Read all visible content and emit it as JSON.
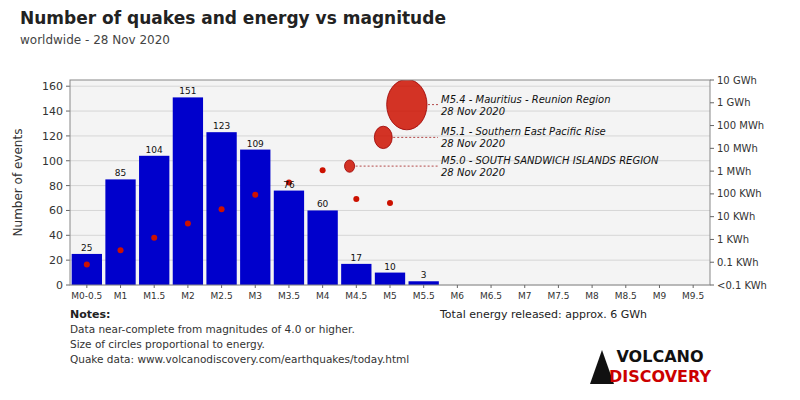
{
  "chart_data": {
    "type": "bar",
    "title": "Number of quakes and energy vs magnitude",
    "subtitle": "worldwide - 28 Nov 2020",
    "categories": [
      "M0-0.5",
      "M1",
      "M1.5",
      "M2",
      "M2.5",
      "M3",
      "M3.5",
      "M4",
      "M4.5",
      "M5",
      "M5.5",
      "M6",
      "M6.5",
      "M7",
      "M7.5",
      "M8",
      "M8.5",
      "M9",
      "M9.5"
    ],
    "ylabel": "Number of events",
    "ylim": [
      0,
      165
    ],
    "yticks": [
      0,
      20,
      40,
      60,
      80,
      100,
      120,
      140,
      160
    ],
    "y2lim": [
      0,
      1
    ],
    "y2ticks": [
      {
        "value": 1,
        "label": "10 GWh"
      },
      {
        "value": 0.8888888888888888,
        "label": "1 GWh"
      },
      {
        "value": 0.7777777777777778,
        "label": "100 MWh"
      },
      {
        "value": 0.6666666666666667,
        "label": "10 MWh"
      },
      {
        "value": 0.5555555555555556,
        "label": "1 MWh"
      },
      {
        "value": 0.4444444444444444,
        "label": "100 KWh"
      },
      {
        "value": 0.3333333333333333,
        "label": "10 KWh"
      },
      {
        "value": 0.2222222222222222,
        "label": "1 KWh"
      },
      {
        "value": 0.1111111111111111,
        "label": "0.1 KWh"
      },
      {
        "value": 0,
        "label": "<0.1 KWh"
      }
    ],
    "grid": true,
    "data_labels": true,
    "series": [
      {
        "type": "bar",
        "color": "#0000cc",
        "values": [
          25,
          85,
          104,
          151,
          123,
          109,
          76,
          60,
          17,
          10,
          3,
          0,
          0,
          0,
          0,
          0,
          0,
          0,
          0
        ],
        "value_labels": [
          "25",
          "85",
          "104",
          "151",
          "123",
          "109",
          "76",
          "60",
          "17",
          "10",
          "3",
          null,
          null,
          null,
          null,
          null,
          null,
          null,
          null
        ]
      },
      {
        "type": "scatter",
        "axis": "y2",
        "color": "#cc1100",
        "x": [
          0,
          1,
          2,
          3,
          4,
          5,
          6,
          7,
          8,
          9
        ],
        "values": [
          0.1,
          0.17,
          0.23,
          0.3,
          0.37,
          0.44,
          0.5,
          0.56,
          0.42,
          0.4
        ]
      },
      {
        "type": "bubble",
        "axis": "y2",
        "color": "#cc1100",
        "x": [
          7.8,
          8.8,
          9.5
        ],
        "values": [
          0.58,
          0.72,
          0.88
        ],
        "rx": [
          18,
          32,
          72
        ],
        "ry": [
          22,
          40,
          90
        ],
        "labels": [
          "M5.0 - SOUTH SANDWICH ISLANDS REGION\n28 Nov 2020",
          "M5.1 - Southern East Pacific Rise\n28 Nov 2020",
          "M5.4 - Mauritius - Reunion Region\n28 Nov 2020"
        ]
      }
    ],
    "notes_title": "Notes:",
    "notes": [
      "Data near-complete from magnitudes of 4.0 or higher.",
      "Size of circles proportional to energy.",
      "Quake data: www.volcanodiscovery.com/earthquakes/today.html"
    ],
    "footer": "Total energy released: approx. 6 GWh",
    "logo": [
      "VOLCANO",
      "DISCOVERY"
    ]
  }
}
